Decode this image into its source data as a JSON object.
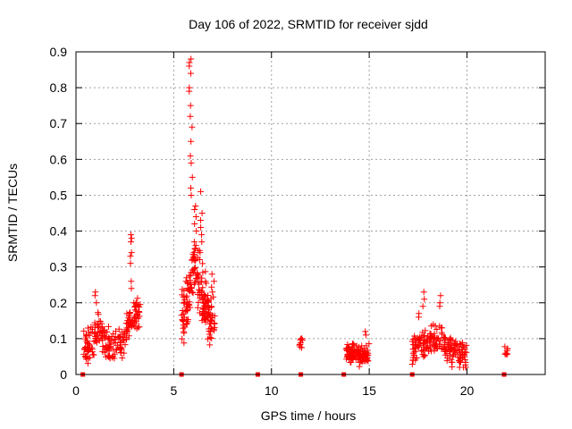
{
  "chart_data": {
    "type": "scatter",
    "title": "Day 106 of 2022, SRMTID for receiver sjdd",
    "xlabel": "GPS time / hours",
    "ylabel": "SRMTID / TECUs",
    "xlim": [
      0,
      24
    ],
    "ylim": [
      0,
      0.9
    ],
    "x_ticks": [
      0,
      5,
      10,
      15,
      20
    ],
    "y_ticks": [
      0,
      0.1,
      0.2,
      0.3,
      0.4,
      0.5,
      0.6,
      0.7,
      0.8,
      0.9
    ],
    "x_tick_labels": [
      "0",
      "5",
      "10",
      "15",
      "20"
    ],
    "y_tick_labels": [
      "0",
      "0.1",
      "0.2",
      "0.3",
      "0.4",
      "0.5",
      "0.6",
      "0.7",
      "0.8",
      "0.9"
    ],
    "grid": true,
    "marker": "+",
    "color": "#ff0000",
    "zero_markers_x": [
      0.35,
      5.4,
      9.3,
      11.5,
      13.7,
      17.2,
      21.9
    ],
    "clusters": [
      {
        "name": "early",
        "x_range": [
          0.4,
          3.3
        ],
        "count": 220,
        "envelope": [
          [
            0.4,
            0.07
          ],
          [
            0.8,
            0.09
          ],
          [
            1.1,
            0.13
          ],
          [
            1.3,
            0.11
          ],
          [
            1.6,
            0.09
          ],
          [
            1.9,
            0.08
          ],
          [
            2.2,
            0.09
          ],
          [
            2.5,
            0.1
          ],
          [
            2.7,
            0.14
          ],
          [
            2.9,
            0.16
          ],
          [
            3.1,
            0.17
          ],
          [
            3.3,
            0.17
          ]
        ],
        "spread": 0.035
      },
      {
        "name": "peak",
        "x_range": [
          5.4,
          7.1
        ],
        "count": 200,
        "envelope": [
          [
            5.4,
            0.17
          ],
          [
            5.6,
            0.16
          ],
          [
            5.8,
            0.22
          ],
          [
            6.0,
            0.3
          ],
          [
            6.2,
            0.28
          ],
          [
            6.4,
            0.24
          ],
          [
            6.6,
            0.2
          ],
          [
            6.8,
            0.17
          ],
          [
            7.0,
            0.15
          ],
          [
            7.1,
            0.14
          ]
        ],
        "spread": 0.06
      },
      {
        "name": "mid",
        "x_range": [
          11.4,
          11.6
        ],
        "count": 10,
        "envelope": [
          [
            11.4,
            0.08
          ],
          [
            11.6,
            0.09
          ]
        ],
        "spread": 0.01
      },
      {
        "name": "afternoon",
        "x_range": [
          13.8,
          15.0
        ],
        "count": 120,
        "envelope": [
          [
            13.8,
            0.06
          ],
          [
            14.2,
            0.06
          ],
          [
            14.6,
            0.05
          ],
          [
            15.0,
            0.06
          ]
        ],
        "spread": 0.02
      },
      {
        "name": "evening",
        "x_range": [
          17.2,
          20.0
        ],
        "count": 210,
        "envelope": [
          [
            17.2,
            0.06
          ],
          [
            17.6,
            0.08
          ],
          [
            18.0,
            0.09
          ],
          [
            18.4,
            0.1
          ],
          [
            18.7,
            0.1
          ],
          [
            19.0,
            0.07
          ],
          [
            19.5,
            0.06
          ],
          [
            20.0,
            0.05
          ]
        ],
        "spread": 0.03
      },
      {
        "name": "late",
        "x_range": [
          21.9,
          22.1
        ],
        "count": 8,
        "envelope": [
          [
            21.9,
            0.07
          ],
          [
            22.1,
            0.07
          ]
        ],
        "spread": 0.01
      }
    ],
    "highlights": [
      {
        "x": 2.8,
        "y": [
          0.39,
          0.38,
          0.37,
          0.34,
          0.33,
          0.31,
          0.26,
          0.24
        ]
      },
      {
        "x": 3.0,
        "y": [
          0.2,
          0.19,
          0.18
        ]
      },
      {
        "x": 1.0,
        "y": [
          0.23,
          0.22,
          0.2
        ]
      },
      {
        "x": 5.85,
        "y": [
          0.88,
          0.87,
          0.86,
          0.84,
          0.8,
          0.79,
          0.75,
          0.72
        ]
      },
      {
        "x": 5.9,
        "y": [
          0.69,
          0.65,
          0.61,
          0.59,
          0.55,
          0.52,
          0.5
        ]
      },
      {
        "x": 6.1,
        "y": [
          0.47,
          0.46,
          0.44,
          0.42,
          0.4,
          0.37,
          0.36,
          0.35
        ]
      },
      {
        "x": 6.4,
        "y": [
          0.51,
          0.45,
          0.43,
          0.41,
          0.39,
          0.37,
          0.34
        ]
      },
      {
        "x": 5.6,
        "y": [
          0.27,
          0.26
        ]
      },
      {
        "x": 7.0,
        "y": [
          0.28,
          0.26,
          0.23
        ]
      },
      {
        "x": 17.8,
        "y": [
          0.23,
          0.21,
          0.19
        ]
      },
      {
        "x": 17.5,
        "y": [
          0.17,
          0.16
        ]
      },
      {
        "x": 18.6,
        "y": [
          0.22,
          0.2,
          0.19
        ]
      },
      {
        "x": 14.8,
        "y": [
          0.12,
          0.11
        ]
      }
    ]
  }
}
